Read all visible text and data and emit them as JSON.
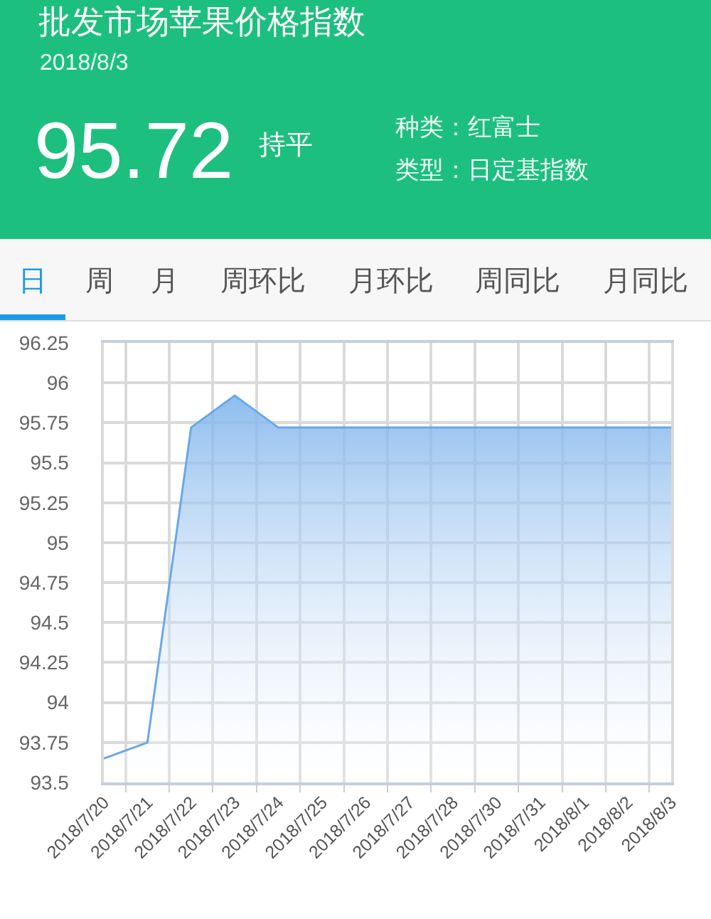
{
  "chart_data": {
    "type": "area",
    "title": "批发市场苹果价格指数",
    "subtitle": "2018/8/3",
    "annotations": [
      "95.72",
      "持平",
      "种类：红富士",
      "类型：日定基指数",
      "日",
      "周",
      "月",
      "周环比",
      "月环比",
      "周同比",
      "月同比"
    ],
    "categories": [
      "2018/7/20",
      "2018/7/21",
      "2018/7/22",
      "2018/7/23",
      "2018/7/24",
      "2018/7/25",
      "2018/7/26",
      "2018/7/27",
      "2018/7/28",
      "2018/7/30",
      "2018/7/31",
      "2018/8/1",
      "2018/8/2",
      "2018/8/3"
    ],
    "values": [
      93.65,
      93.75,
      95.72,
      95.92,
      95.72,
      95.72,
      95.72,
      95.72,
      95.72,
      95.72,
      95.72,
      95.72,
      95.72,
      95.72
    ],
    "color": "#6aa8e8",
    "ylim": [
      93.5,
      96.25
    ],
    "yticks": [
      93.5,
      93.75,
      94,
      94.25,
      94.5,
      94.75,
      95,
      95.25,
      95.5,
      95.75,
      96,
      96.25
    ],
    "grid": true
  }
}
